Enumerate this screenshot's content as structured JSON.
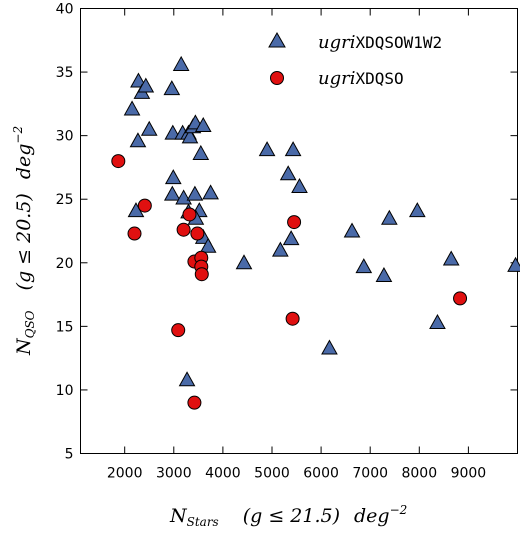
{
  "chart_data": {
    "type": "scatter",
    "title": "",
    "xlabel": "N_Stars (g ≤ 21.5) deg^-2",
    "ylabel": "N_QSO (g ≤ 20.5) deg^-2",
    "xlim": [
      1100,
      10000
    ],
    "ylim": [
      5,
      40
    ],
    "xticks": [
      2000,
      3000,
      4000,
      5000,
      6000,
      7000,
      8000,
      9000
    ],
    "yticks": [
      5,
      10,
      15,
      20,
      25,
      30,
      35,
      40
    ],
    "grid": false,
    "legend_position": "top-right",
    "series": [
      {
        "name": "ugriXDQSOW1W2",
        "marker": "triangle",
        "color": "#4a6aa8",
        "points": [
          [
            2150,
            32.1
          ],
          [
            2280,
            34.3
          ],
          [
            2350,
            33.4
          ],
          [
            2430,
            33.9
          ],
          [
            2500,
            30.5
          ],
          [
            2270,
            29.6
          ],
          [
            2230,
            24.1
          ],
          [
            2960,
            33.7
          ],
          [
            3150,
            35.6
          ],
          [
            2980,
            30.2
          ],
          [
            3180,
            30.2
          ],
          [
            3300,
            30.2
          ],
          [
            3330,
            29.9
          ],
          [
            3390,
            30.7
          ],
          [
            3440,
            31.0
          ],
          [
            3600,
            30.8
          ],
          [
            3550,
            28.6
          ],
          [
            2970,
            25.4
          ],
          [
            2990,
            26.7
          ],
          [
            3200,
            25.1
          ],
          [
            3300,
            24.0
          ],
          [
            3430,
            25.4
          ],
          [
            3520,
            24.1
          ],
          [
            3450,
            23.5
          ],
          [
            3600,
            22.0
          ],
          [
            3700,
            21.3
          ],
          [
            3750,
            25.5
          ],
          [
            3270,
            10.8
          ],
          [
            4430,
            20.0
          ],
          [
            4900,
            28.9
          ],
          [
            5170,
            21.0
          ],
          [
            5330,
            27.0
          ],
          [
            5430,
            28.9
          ],
          [
            5560,
            26.0
          ],
          [
            5390,
            21.9
          ],
          [
            6170,
            13.3
          ],
          [
            6630,
            22.5
          ],
          [
            6870,
            19.7
          ],
          [
            7280,
            19.0
          ],
          [
            7390,
            23.5
          ],
          [
            7960,
            24.1
          ],
          [
            8370,
            15.3
          ],
          [
            8650,
            20.3
          ],
          [
            9960,
            19.8
          ]
        ]
      },
      {
        "name": "ugriXDQSO",
        "marker": "circle",
        "color": "#e01010",
        "points": [
          [
            1870,
            28.0
          ],
          [
            2200,
            22.3
          ],
          [
            2410,
            24.5
          ],
          [
            3090,
            14.7
          ],
          [
            3200,
            22.6
          ],
          [
            3320,
            23.8
          ],
          [
            3420,
            20.1
          ],
          [
            3480,
            22.3
          ],
          [
            3560,
            20.4
          ],
          [
            3560,
            19.7
          ],
          [
            3570,
            19.1
          ],
          [
            3420,
            9.0
          ],
          [
            5450,
            23.2
          ],
          [
            5420,
            15.6
          ],
          [
            8830,
            17.2
          ]
        ]
      }
    ]
  },
  "legend": {
    "items": [
      {
        "prefix": "ugri",
        "suffix": "XDQSOW1W2"
      },
      {
        "prefix": "ugri",
        "suffix": "XDQSO"
      }
    ]
  }
}
